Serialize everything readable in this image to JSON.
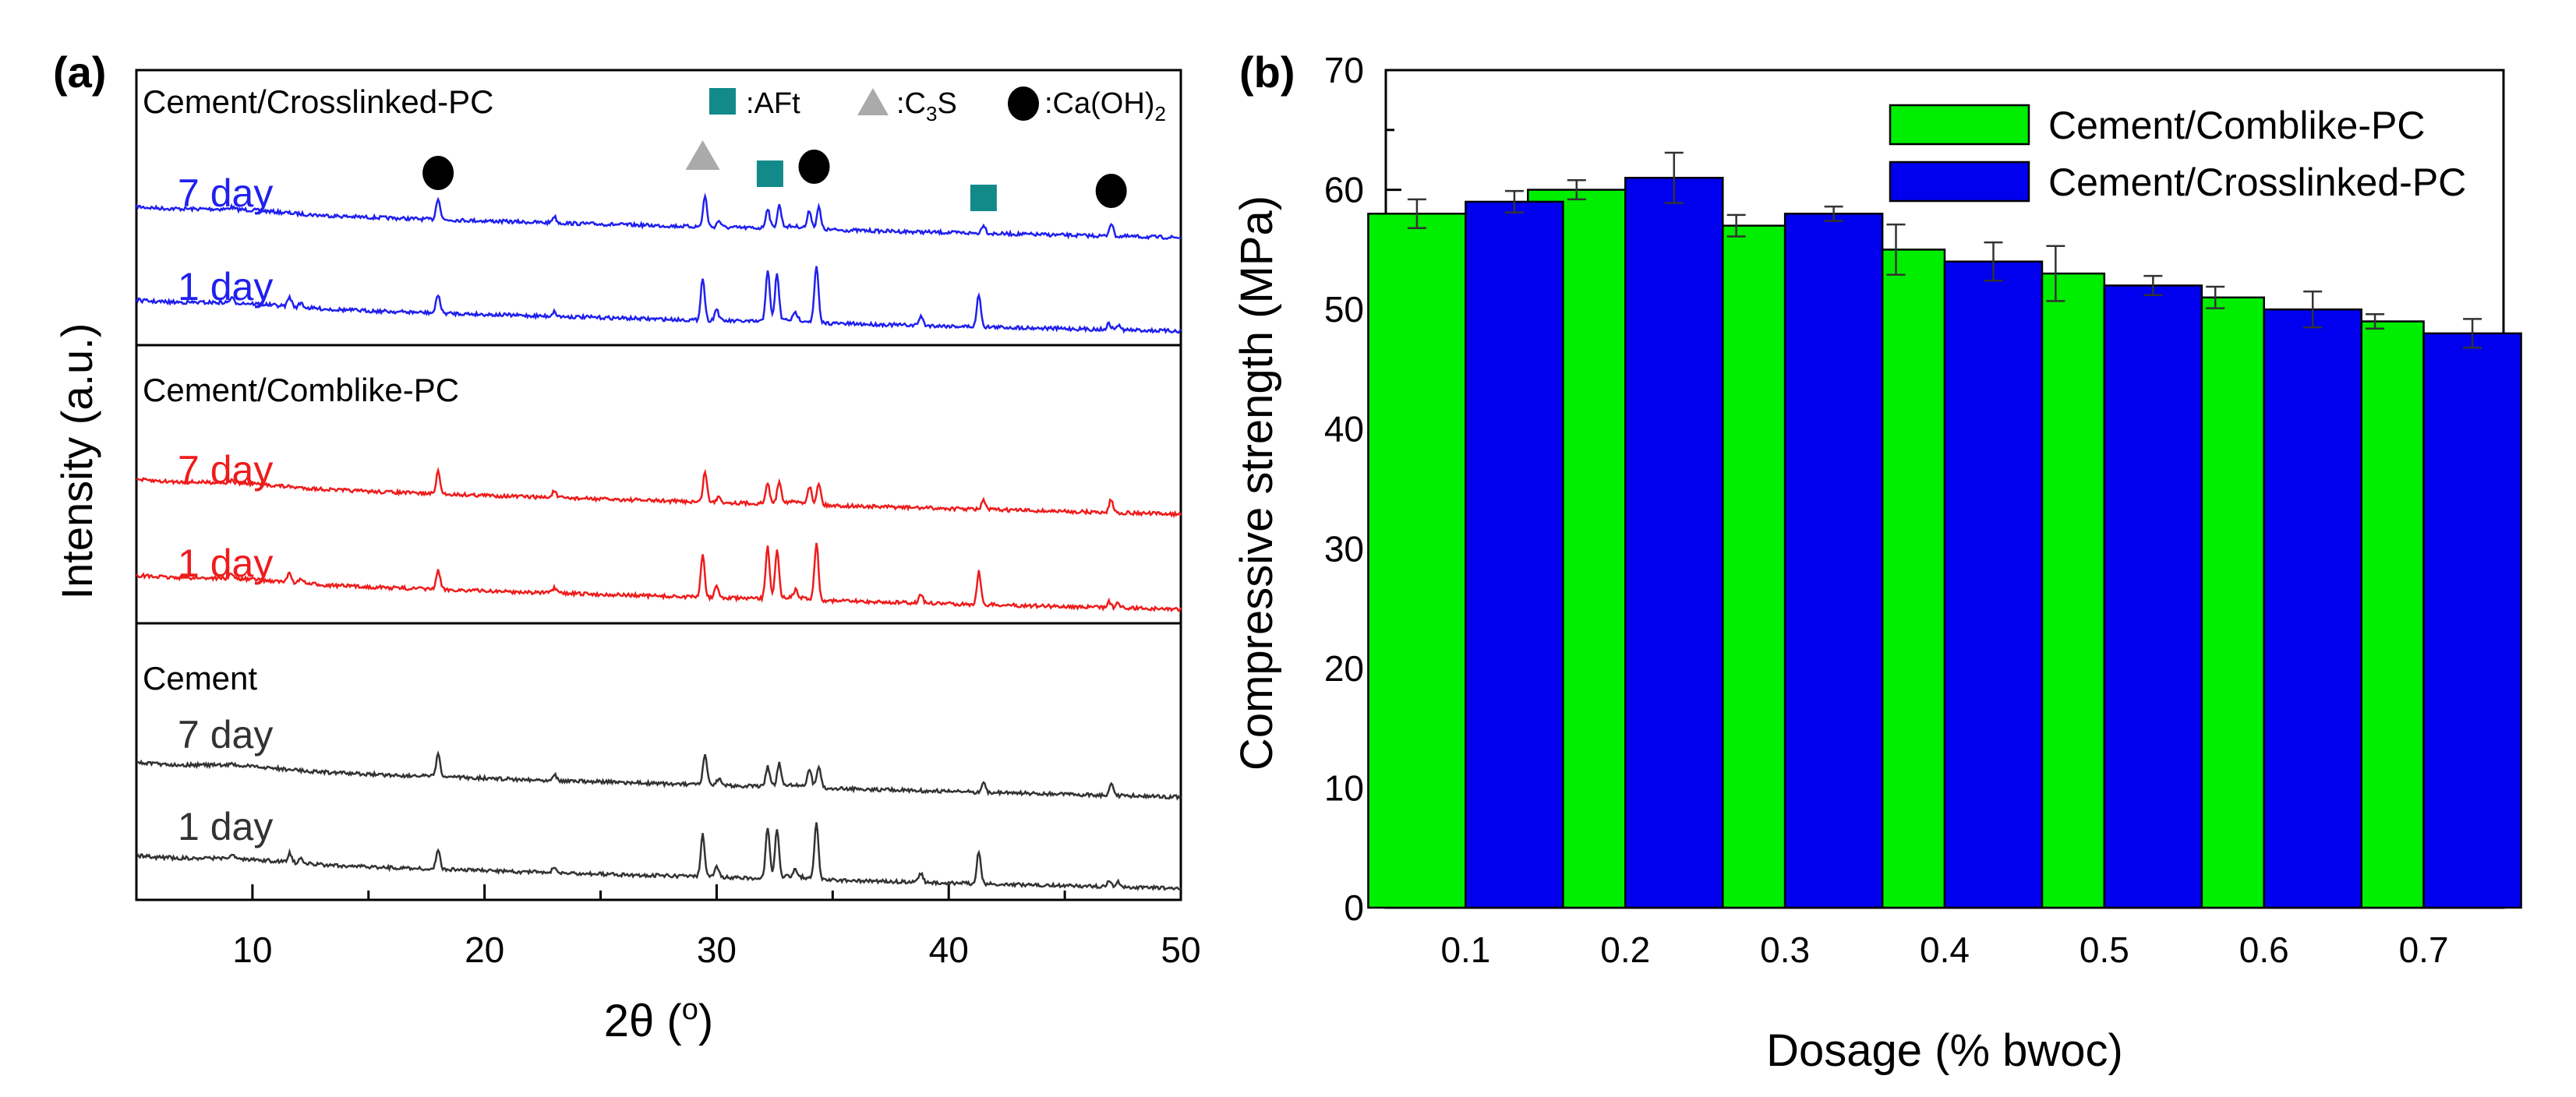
{
  "chart_data": [
    {
      "type": "line",
      "panel_label": "(a)",
      "ylabel": "Intensity (a.u.)",
      "xlabel": "2θ (°)",
      "xlabel_main": "2θ (",
      "xlabel_degree": "o",
      "xlabel_close": ")",
      "xlim": [
        5,
        50
      ],
      "xticks": [
        "10",
        "20",
        "30",
        "40",
        "50"
      ],
      "legend": {
        "aft": ":AFt",
        "c3s_prefix": ":C",
        "c3s_sub": "3",
        "c3s_suffix": "S",
        "caoh_prefix": ":Ca(OH)",
        "caoh_sub": "2"
      },
      "colors": {
        "crosslinked": "#2020ee",
        "comblike": "#ee1c1c",
        "cement": "#333333",
        "aft": "#138a8a",
        "c3s": "#aaaaaa",
        "caoh": "#000000"
      },
      "groups": [
        {
          "name": "Cement/Crosslinked-PC",
          "color": "crosslinked",
          "series": [
            {
              "label": "7 day",
              "age": 7
            },
            {
              "label": "1 day",
              "age": 1
            }
          ]
        },
        {
          "name": "Cement/Comblike-PC",
          "color": "comblike",
          "series": [
            {
              "label": "7 day",
              "age": 7
            },
            {
              "label": "1 day",
              "age": 1
            }
          ]
        },
        {
          "name": "Cement",
          "color": "cement",
          "series": [
            {
              "label": "7 day",
              "age": 7
            },
            {
              "label": "1 day",
              "age": 1
            }
          ]
        }
      ],
      "peaks_2theta": {
        "1day": [
          [
            9.1,
            0.2
          ],
          [
            11.6,
            0.4
          ],
          [
            12.1,
            0.2
          ],
          [
            18.0,
            0.8
          ],
          [
            23.0,
            0.2
          ],
          [
            29.4,
            1.8
          ],
          [
            30.0,
            0.5
          ],
          [
            32.2,
            2.2
          ],
          [
            32.6,
            2.0
          ],
          [
            33.4,
            0.3
          ],
          [
            34.3,
            2.4
          ],
          [
            38.8,
            0.4
          ],
          [
            41.3,
            1.4
          ],
          [
            46.9,
            0.25
          ],
          [
            47.3,
            0.2
          ]
        ],
        "7day": [
          [
            9.1,
            0.1
          ],
          [
            18.0,
            1.0
          ],
          [
            23.0,
            0.3
          ],
          [
            29.5,
            1.4
          ],
          [
            30.1,
            0.3
          ],
          [
            32.2,
            0.9
          ],
          [
            32.7,
            1.0
          ],
          [
            34.0,
            0.8
          ],
          [
            34.4,
            1.0
          ],
          [
            41.5,
            0.4
          ],
          [
            47.0,
            0.6
          ]
        ]
      },
      "markers": [
        {
          "phase": "Ca(OH)2",
          "two_theta": 18.0
        },
        {
          "phase": "C3S",
          "two_theta": 29.4
        },
        {
          "phase": "AFt",
          "two_theta": 32.3
        },
        {
          "phase": "Ca(OH)2",
          "two_theta": 34.2
        },
        {
          "phase": "AFt",
          "two_theta": 41.5
        },
        {
          "phase": "Ca(OH)2",
          "two_theta": 47.0
        }
      ]
    },
    {
      "type": "bar",
      "panel_label": "(b)",
      "title": "",
      "xlabel": "Dosage (% bwoc)",
      "ylabel": "Compressive strength (MPa)",
      "ylim": [
        0,
        70
      ],
      "yticks": [
        "0",
        "10",
        "20",
        "30",
        "40",
        "50",
        "60",
        "70"
      ],
      "categories": [
        "0.1",
        "0.2",
        "0.3",
        "0.4",
        "0.5",
        "0.6",
        "0.7"
      ],
      "legend_position": "top-right",
      "series": [
        {
          "name": "Cement/Comblike-PC",
          "color": "#00ee00",
          "values": [
            58,
            60,
            57,
            55,
            53,
            51,
            49
          ],
          "errors": [
            1.2,
            0.8,
            0.9,
            2.1,
            2.3,
            0.9,
            0.6
          ]
        },
        {
          "name": "Cement/Crosslinked-PC",
          "color": "#0000ee",
          "values": [
            59,
            61,
            58,
            54,
            52,
            50,
            48
          ],
          "errors": [
            0.9,
            2.1,
            0.6,
            1.6,
            0.8,
            1.5,
            1.2
          ]
        }
      ]
    }
  ]
}
